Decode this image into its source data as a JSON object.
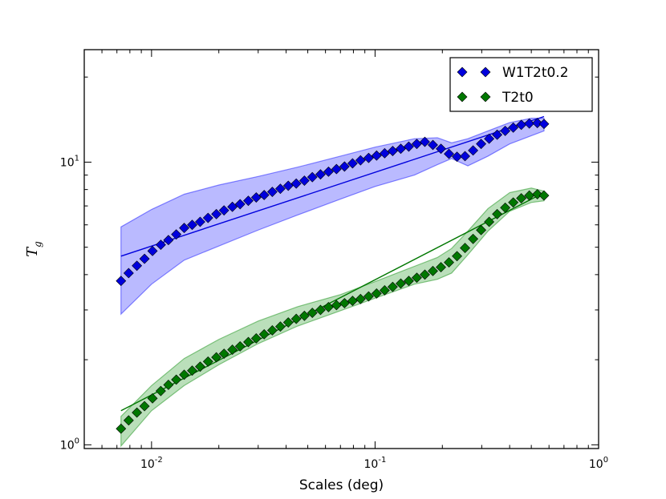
{
  "chart_data": {
    "type": "line",
    "title": "",
    "xlabel": "Scales (deg)",
    "ylabel": "T",
    "ylabel_subscript": "g",
    "xscale": "log",
    "yscale": "log",
    "xlim": [
      0.005,
      1.0
    ],
    "ylim": [
      0.97,
      25
    ],
    "xticks": [
      {
        "value": 0.01,
        "base": "10",
        "exp": "-2"
      },
      {
        "value": 0.1,
        "base": "10",
        "exp": "-1"
      },
      {
        "value": 1.0,
        "base": "10",
        "exp": "0"
      }
    ],
    "yticks": [
      {
        "value": 1,
        "base": "10",
        "exp": "0"
      },
      {
        "value": 10,
        "base": "10",
        "exp": "1"
      }
    ],
    "legend_position": "top-right",
    "series": [
      {
        "name": "W1T2t0.2",
        "color": "#0000dd",
        "band_color": "#0000ff",
        "marker": "diamond",
        "x": [
          0.0073,
          0.0079,
          0.0086,
          0.0093,
          0.0101,
          0.011,
          0.0119,
          0.0129,
          0.014,
          0.0152,
          0.0165,
          0.0179,
          0.0195,
          0.0211,
          0.023,
          0.0249,
          0.0271,
          0.0294,
          0.0319,
          0.0347,
          0.0377,
          0.0409,
          0.0444,
          0.0483,
          0.0524,
          0.057,
          0.0619,
          0.0672,
          0.073,
          0.0793,
          0.0861,
          0.0936,
          0.1016,
          0.1104,
          0.1199,
          0.1303,
          0.1415,
          0.1537,
          0.167,
          0.1814,
          0.1971,
          0.2141,
          0.2326,
          0.2526,
          0.2745,
          0.2981,
          0.3239,
          0.3518,
          0.3822,
          0.4152,
          0.451,
          0.4899,
          0.5322,
          0.57
        ],
        "y": [
          3.8,
          4.05,
          4.3,
          4.55,
          4.85,
          5.1,
          5.3,
          5.55,
          5.85,
          6.0,
          6.15,
          6.35,
          6.55,
          6.75,
          6.95,
          7.1,
          7.3,
          7.5,
          7.65,
          7.85,
          8.05,
          8.25,
          8.4,
          8.6,
          8.85,
          9.05,
          9.25,
          9.45,
          9.65,
          9.9,
          10.15,
          10.35,
          10.55,
          10.75,
          10.95,
          11.15,
          11.35,
          11.6,
          11.8,
          11.5,
          11.15,
          10.7,
          10.45,
          10.5,
          11.0,
          11.6,
          12.1,
          12.5,
          12.9,
          13.25,
          13.55,
          13.7,
          13.75,
          13.65
        ],
        "fit_x": [
          0.0073,
          0.57
        ],
        "fit_y": [
          4.65,
          14.5
        ],
        "band_x": [
          0.0073,
          0.01,
          0.014,
          0.02,
          0.03,
          0.045,
          0.07,
          0.1,
          0.15,
          0.19,
          0.22,
          0.26,
          0.32,
          0.4,
          0.5,
          0.57
        ],
        "band_upper": [
          5.9,
          6.8,
          7.7,
          8.3,
          8.9,
          9.6,
          10.5,
          11.3,
          12.1,
          12.2,
          11.7,
          12.1,
          12.9,
          13.8,
          14.3,
          14.3
        ],
        "band_lower": [
          2.9,
          3.7,
          4.5,
          5.05,
          5.75,
          6.5,
          7.4,
          8.2,
          9.0,
          9.8,
          10.3,
          9.7,
          10.5,
          11.6,
          12.4,
          12.9
        ]
      },
      {
        "name": "T2t0",
        "color": "#007700",
        "band_color": "#008800",
        "marker": "diamond",
        "x": [
          0.0073,
          0.0079,
          0.0086,
          0.0093,
          0.0101,
          0.011,
          0.0119,
          0.0129,
          0.014,
          0.0152,
          0.0165,
          0.0179,
          0.0195,
          0.0211,
          0.023,
          0.0249,
          0.0271,
          0.0294,
          0.0319,
          0.0347,
          0.0377,
          0.0409,
          0.0444,
          0.0483,
          0.0524,
          0.057,
          0.0619,
          0.0672,
          0.073,
          0.0793,
          0.0861,
          0.0936,
          0.1016,
          0.1104,
          0.1199,
          0.1303,
          0.1415,
          0.1537,
          0.167,
          0.1814,
          0.1971,
          0.2141,
          0.2326,
          0.2526,
          0.2745,
          0.2981,
          0.3239,
          0.3518,
          0.3822,
          0.4152,
          0.451,
          0.4899,
          0.5322,
          0.57
        ],
        "y": [
          1.14,
          1.22,
          1.3,
          1.37,
          1.46,
          1.55,
          1.63,
          1.7,
          1.77,
          1.83,
          1.89,
          1.97,
          2.04,
          2.1,
          2.17,
          2.23,
          2.31,
          2.38,
          2.46,
          2.54,
          2.62,
          2.71,
          2.79,
          2.86,
          2.93,
          3.0,
          3.07,
          3.12,
          3.17,
          3.23,
          3.28,
          3.35,
          3.43,
          3.52,
          3.62,
          3.72,
          3.8,
          3.9,
          4.0,
          4.12,
          4.25,
          4.42,
          4.65,
          4.97,
          5.35,
          5.75,
          6.15,
          6.55,
          6.9,
          7.2,
          7.45,
          7.62,
          7.7,
          7.62
        ],
        "fit_x": [
          0.0073,
          0.57
        ],
        "fit_y": [
          1.32,
          7.8
        ],
        "band_x": [
          0.0073,
          0.01,
          0.014,
          0.02,
          0.03,
          0.045,
          0.07,
          0.1,
          0.15,
          0.19,
          0.22,
          0.26,
          0.32,
          0.4,
          0.5,
          0.57
        ],
        "band_upper": [
          1.26,
          1.62,
          2.02,
          2.36,
          2.74,
          3.08,
          3.4,
          3.78,
          4.28,
          4.6,
          4.95,
          5.7,
          6.85,
          7.8,
          8.1,
          7.9
        ],
        "band_lower": [
          0.99,
          1.32,
          1.62,
          1.92,
          2.28,
          2.63,
          2.98,
          3.3,
          3.7,
          3.85,
          4.05,
          4.7,
          5.7,
          6.7,
          7.2,
          7.3
        ]
      }
    ]
  }
}
